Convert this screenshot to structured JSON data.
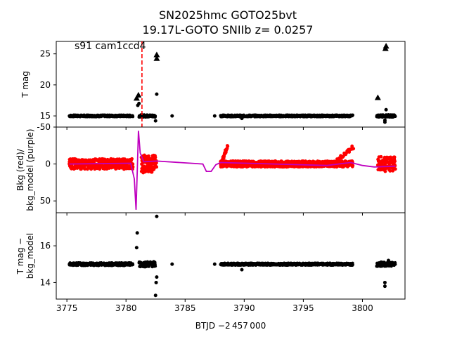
{
  "title_line1": "SN2025hmc  GOTO25bvt",
  "title_line2": "19.17L-GOTO SNIIb z= 0.0257",
  "annotation": "s91 cam1ccd4",
  "xlabel": "BTJD −2 457 000",
  "colors": {
    "tmag": "#000000",
    "bkg": "#ff0000",
    "bkg_model": "#bf00bf",
    "marker_line": "#ff0000"
  },
  "chart_data": [
    {
      "type": "scatter",
      "panel": "top",
      "ylabel": "T mag",
      "yticks": [
        15,
        20,
        25
      ],
      "ylim": [
        27,
        13.2
      ],
      "xlim": [
        3774.1,
        3803.6
      ],
      "xticks": [
        3775,
        3780,
        3785,
        3790,
        3795,
        3800
      ],
      "vline_x": 3781.35,
      "segments": [
        {
          "x0": 3775.2,
          "x1": 3780.6,
          "y": 15.0,
          "spread": 0.15
        },
        {
          "x0": 3781.1,
          "x1": 3782.5,
          "y": 15.0,
          "spread": 0.2
        },
        {
          "x0": 3788.0,
          "x1": 3799.2,
          "y": 15.0,
          "spread": 0.15
        },
        {
          "x0": 3801.2,
          "x1": 3802.8,
          "y": 15.0,
          "spread": 0.2
        }
      ],
      "extra_points": [
        [
          3781.0,
          16.7
        ],
        [
          3781.1,
          17.0
        ],
        [
          3782.5,
          14.2
        ],
        [
          3782.6,
          18.5
        ],
        [
          3783.9,
          15.0
        ],
        [
          3787.5,
          15.0
        ],
        [
          3789.8,
          14.6
        ],
        [
          3801.9,
          14.0
        ],
        [
          3801.9,
          14.3
        ],
        [
          3802.0,
          16.0
        ]
      ],
      "upper_limits": [
        [
          3780.9,
          17.8
        ],
        [
          3781.05,
          18.3
        ],
        [
          3782.6,
          24.2
        ],
        [
          3782.6,
          24.8
        ],
        [
          3801.3,
          17.9
        ],
        [
          3801.95,
          25.8
        ],
        [
          3802.0,
          26.2
        ]
      ]
    },
    {
      "type": "scatter",
      "panel": "middle",
      "ylabel": "Bkg (red)/\nbkg_model (purple)",
      "yticks": [
        -50,
        0,
        50
      ],
      "ylim": [
        -50,
        66
      ],
      "series": [
        {
          "name": "Bkg",
          "segments": [
            {
              "x0": 3775.2,
              "x1": 3780.6,
              "base": 0,
              "spread": 7
            },
            {
              "x0": 3781.3,
              "x1": 3782.6,
              "base": 0,
              "spread": 12
            },
            {
              "x0": 3788.0,
              "x1": 3799.2,
              "base": 0,
              "spread": 4
            },
            {
              "x0": 3801.3,
              "x1": 3802.8,
              "base": 0,
              "spread": 10
            }
          ]
        },
        {
          "name": "bkg_model",
          "curve": [
            [
              3775.2,
              0
            ],
            [
              3780.4,
              -1
            ],
            [
              3780.7,
              20
            ],
            [
              3780.85,
              62
            ],
            [
              3780.95,
              10
            ],
            [
              3781.05,
              -45
            ],
            [
              3781.2,
              -15
            ],
            [
              3781.5,
              -3
            ],
            [
              3782.6,
              -4
            ],
            [
              3786.5,
              0
            ],
            [
              3786.8,
              10
            ],
            [
              3787.2,
              10
            ],
            [
              3787.6,
              1
            ],
            [
              3788.0,
              -2
            ],
            [
              3797.0,
              2
            ],
            [
              3798.5,
              -1
            ],
            [
              3799.0,
              -2
            ],
            [
              3800.0,
              2
            ],
            [
              3801.0,
              4
            ],
            [
              3802.8,
              3
            ]
          ]
        }
      ]
    },
    {
      "type": "scatter",
      "panel": "bottom",
      "ylabel": "T mag −\nbkg_model",
      "yticks": [
        14,
        16
      ],
      "ylim": [
        17.8,
        13.1
      ],
      "segments": [
        {
          "x0": 3775.2,
          "x1": 3780.6,
          "y": 15.0,
          "spread": 0.08
        },
        {
          "x0": 3781.1,
          "x1": 3782.5,
          "y": 15.0,
          "spread": 0.15
        },
        {
          "x0": 3788.0,
          "x1": 3799.2,
          "y": 15.0,
          "spread": 0.06
        },
        {
          "x0": 3801.2,
          "x1": 3802.8,
          "y": 15.0,
          "spread": 0.12
        }
      ],
      "extra_points": [
        [
          3780.9,
          15.9
        ],
        [
          3780.95,
          16.7
        ],
        [
          3782.5,
          13.3
        ],
        [
          3782.55,
          14.0
        ],
        [
          3782.6,
          14.3
        ],
        [
          3782.6,
          17.6
        ],
        [
          3783.9,
          15.0
        ],
        [
          3787.5,
          15.0
        ],
        [
          3789.8,
          14.7
        ],
        [
          3801.9,
          13.8
        ],
        [
          3801.9,
          14.0
        ],
        [
          3802.2,
          15.2
        ]
      ]
    }
  ]
}
